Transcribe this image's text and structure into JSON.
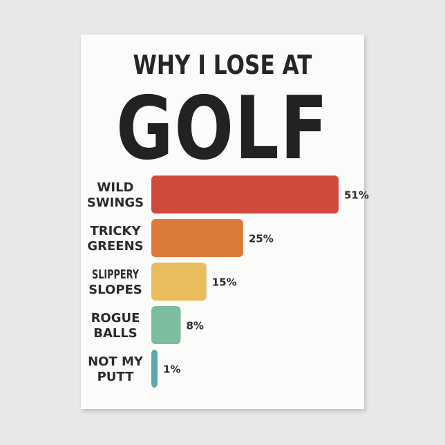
{
  "chart_data": {
    "type": "bar",
    "orientation": "horizontal",
    "title_line1": "WHY I LOSE AT",
    "title_line2": "GOLF",
    "categories": [
      [
        "WILD",
        "SWINGS"
      ],
      [
        "TRICKY",
        "GREENS"
      ],
      [
        "SLIPPERY",
        "SLOPES"
      ],
      [
        "ROGUE",
        "BALLS"
      ],
      [
        "NOT MY",
        "PUTT"
      ]
    ],
    "values": [
      51,
      25,
      15,
      8,
      1
    ],
    "value_labels": [
      "51%",
      "25%",
      "15%",
      "8%",
      "1%"
    ],
    "colors": [
      "#cf4a3d",
      "#dc7a3c",
      "#e9bc5e",
      "#7dbc9e",
      "#5ba9a6"
    ],
    "grid": false,
    "xlim": [
      0,
      51
    ]
  }
}
